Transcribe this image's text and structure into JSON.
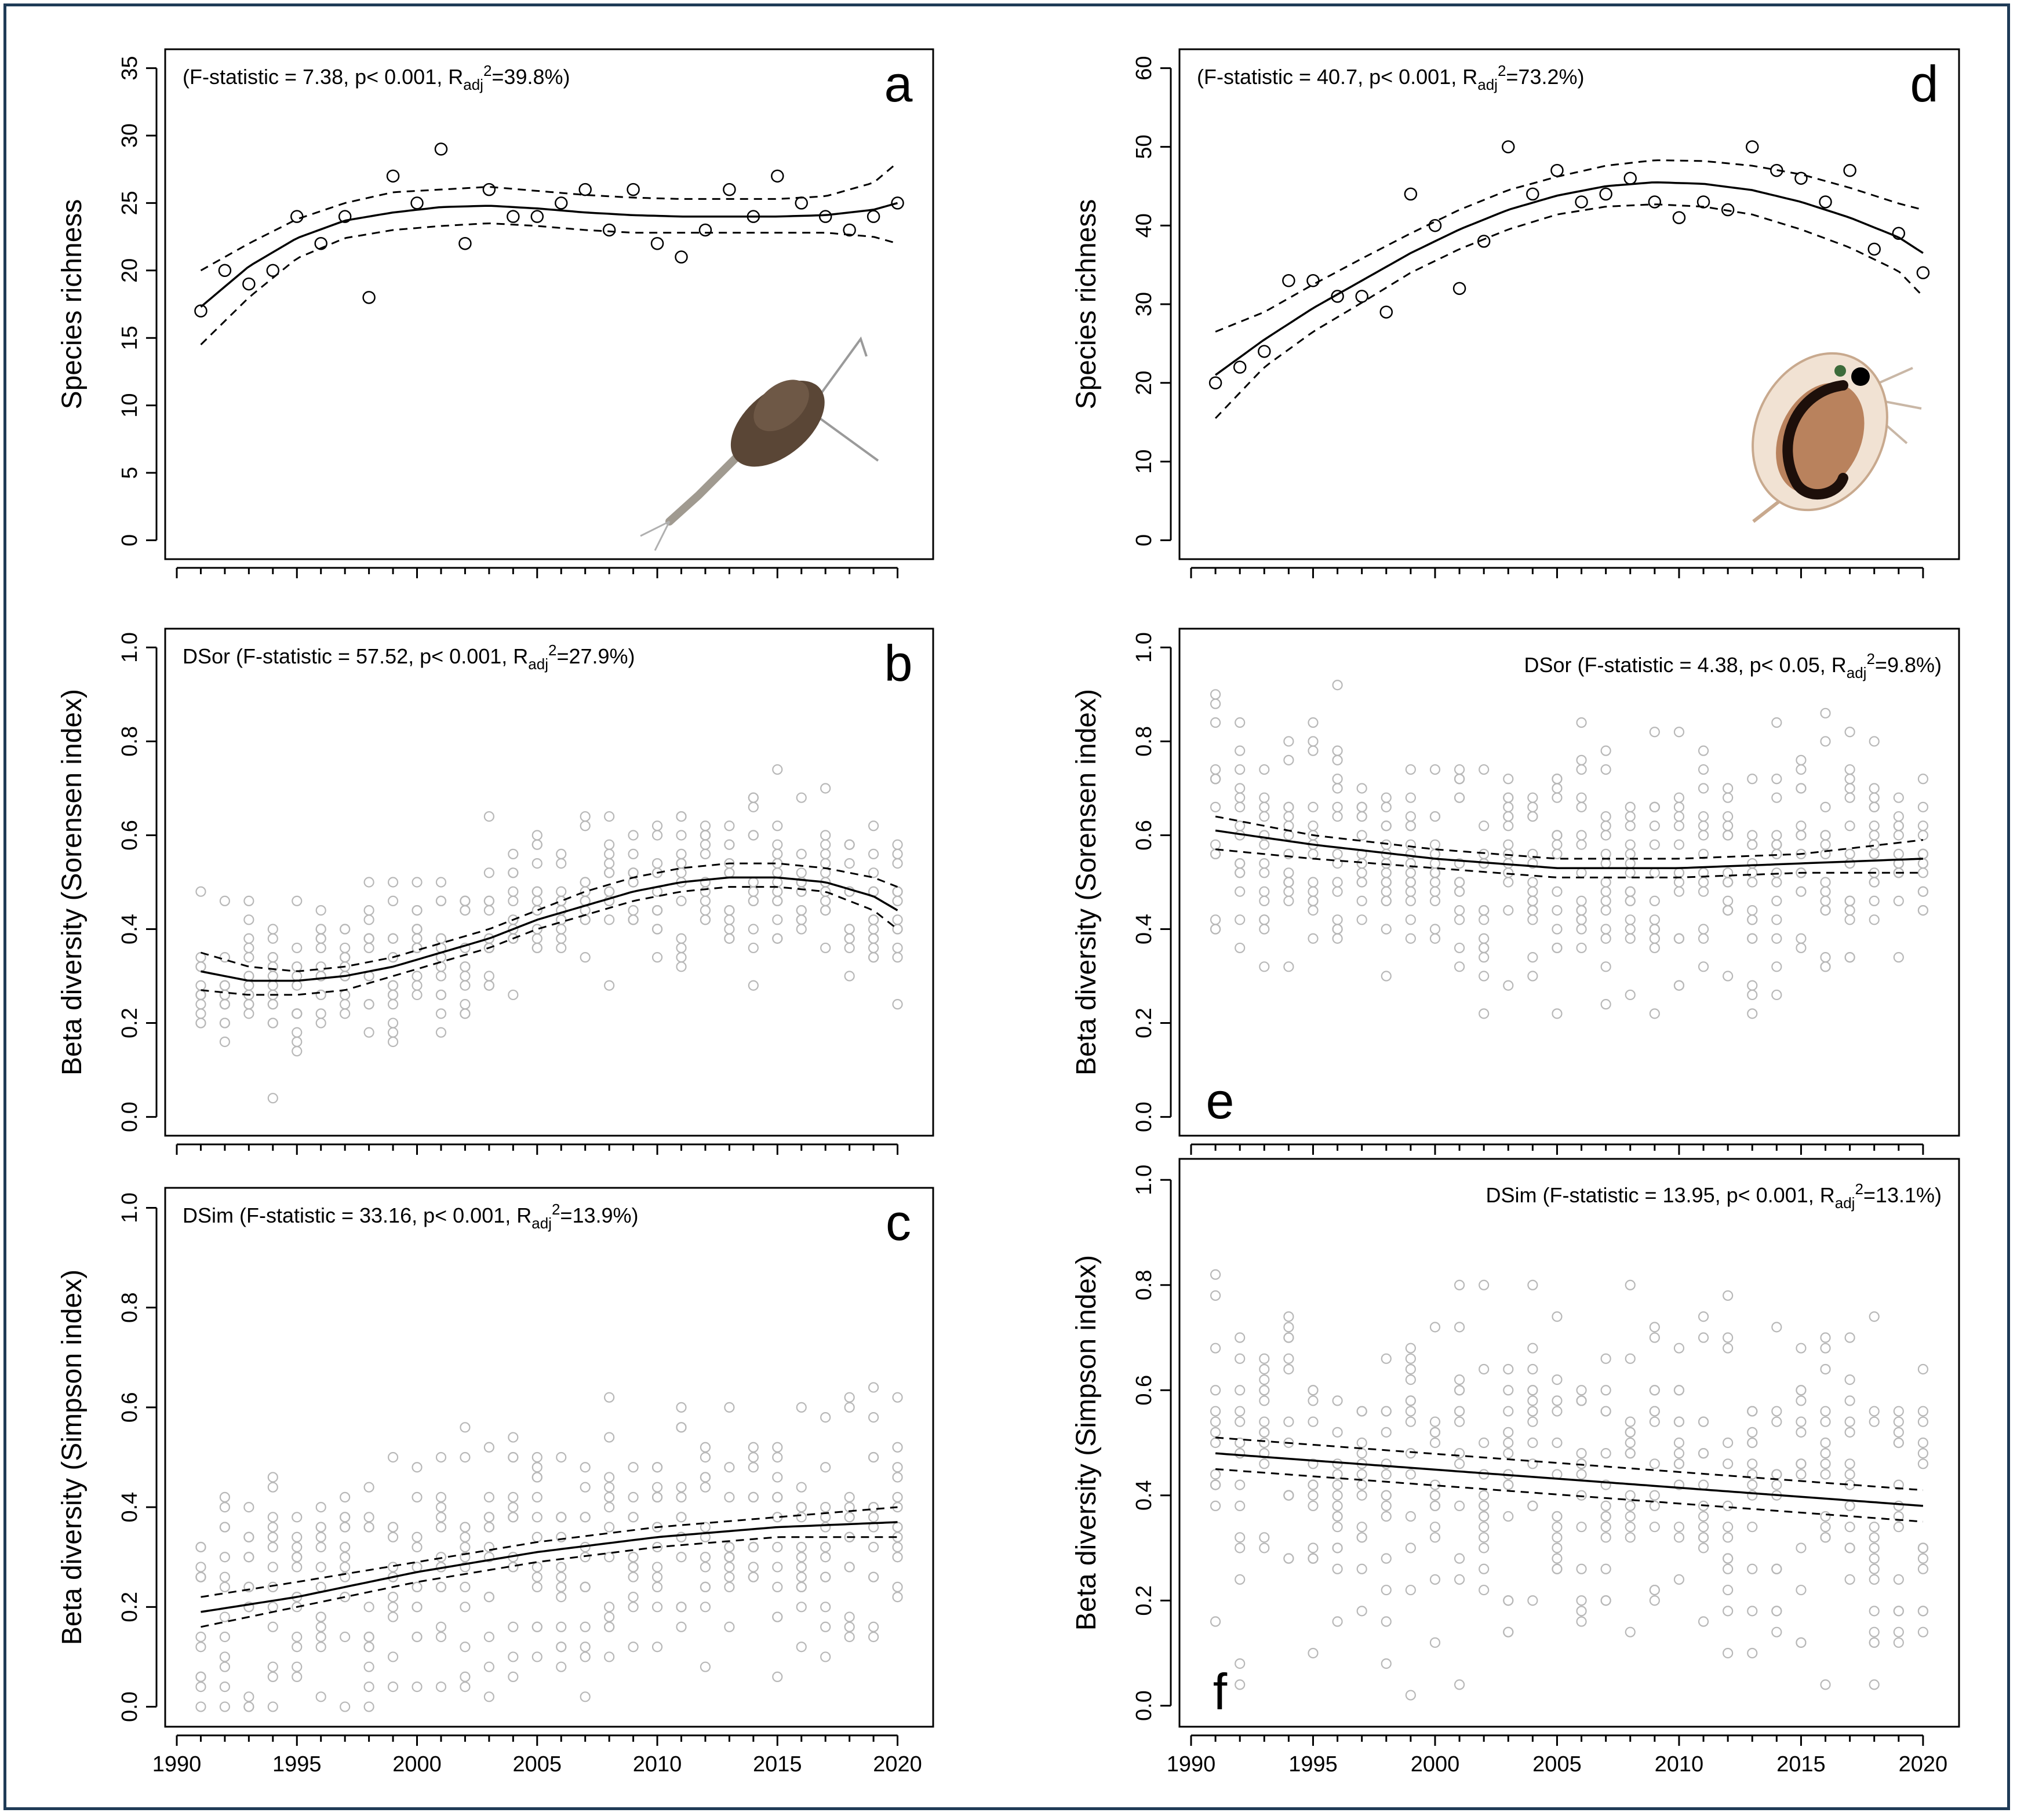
{
  "figure": {
    "frame_color": "#1f3b57",
    "x_ticks": [
      1990,
      1995,
      2000,
      2005,
      2010,
      2015,
      2020
    ]
  },
  "chart_data": [
    {
      "id": "a",
      "type": "scatter",
      "panel_letter": "a",
      "ylabel": "Species richness",
      "stat_parts": {
        "pre": "(F-statistic = 7.38, p< 0.001, R",
        "sub": "adj",
        "sup": "2",
        "post": "=39.8%)"
      },
      "x_range": [
        1990,
        2021
      ],
      "ylim": [
        0,
        35
      ],
      "y_ticks": [
        0,
        5,
        10,
        15,
        20,
        25,
        30,
        35
      ],
      "x_axis_labels": false,
      "point_color": "#000000",
      "points": {
        "x": [
          1991,
          1992,
          1993,
          1994,
          1995,
          1996,
          1997,
          1998,
          1999,
          2000,
          2001,
          2002,
          2003,
          2004,
          2005,
          2006,
          2007,
          2008,
          2009,
          2010,
          2011,
          2012,
          2013,
          2014,
          2015,
          2016,
          2017,
          2018,
          2019,
          2020
        ],
        "y": [
          17,
          20,
          19,
          20,
          24,
          22,
          24,
          18,
          27,
          25,
          29,
          22,
          26,
          24,
          24,
          25,
          26,
          23,
          26,
          22,
          21,
          23,
          26,
          24,
          27,
          25,
          24,
          23,
          24,
          25
        ]
      },
      "fit": {
        "x": [
          1991,
          1993,
          1995,
          1997,
          1999,
          2001,
          2003,
          2005,
          2007,
          2009,
          2011,
          2013,
          2015,
          2017,
          2019,
          2020
        ],
        "y": [
          17.3,
          20.3,
          22.4,
          23.7,
          24.3,
          24.7,
          24.8,
          24.6,
          24.3,
          24.1,
          24.0,
          24.0,
          24.0,
          24.1,
          24.5,
          25.0
        ],
        "upper": [
          20.0,
          22.0,
          23.8,
          25.0,
          25.8,
          26.0,
          26.2,
          25.9,
          25.6,
          25.4,
          25.3,
          25.3,
          25.3,
          25.5,
          26.5,
          28.0
        ],
        "lower": [
          14.5,
          18.0,
          20.9,
          22.4,
          23.0,
          23.3,
          23.5,
          23.3,
          23.0,
          22.8,
          22.8,
          22.8,
          22.8,
          22.8,
          22.5,
          22.0
        ]
      },
      "image_caption": "copepod photograph"
    },
    {
      "id": "b",
      "type": "scatter",
      "panel_letter": "b",
      "ylabel": "Beta diversity (Sorensen index)",
      "stat_parts": {
        "pre": "DSor (F-statistic = 57.52, p< 0.001, R",
        "sub": "adj",
        "sup": "2",
        "post": "=27.9%)"
      },
      "x_range": [
        1990,
        2021
      ],
      "ylim": [
        0,
        1
      ],
      "y_ticks": [
        0.0,
        0.2,
        0.4,
        0.6,
        0.8,
        1.0
      ],
      "x_axis_labels": false,
      "point_color": "#b8b8b8",
      "scatter_seed": 11,
      "scatter_per_year": 13,
      "scatter_spread": 0.11,
      "fit": {
        "x": [
          1991,
          1993,
          1995,
          1997,
          1999,
          2001,
          2003,
          2005,
          2007,
          2009,
          2011,
          2013,
          2015,
          2017,
          2019,
          2020
        ],
        "y": [
          0.31,
          0.29,
          0.29,
          0.3,
          0.32,
          0.35,
          0.38,
          0.42,
          0.45,
          0.48,
          0.5,
          0.51,
          0.51,
          0.5,
          0.47,
          0.44
        ],
        "upper": [
          0.35,
          0.32,
          0.31,
          0.32,
          0.34,
          0.37,
          0.4,
          0.44,
          0.48,
          0.51,
          0.53,
          0.54,
          0.54,
          0.53,
          0.51,
          0.49
        ],
        "lower": [
          0.27,
          0.26,
          0.26,
          0.27,
          0.3,
          0.33,
          0.36,
          0.4,
          0.43,
          0.46,
          0.48,
          0.49,
          0.49,
          0.48,
          0.44,
          0.4
        ]
      }
    },
    {
      "id": "c",
      "type": "scatter",
      "panel_letter": "c",
      "ylabel": "Beta diversity (Simpson index)",
      "stat_parts": {
        "pre": "DSim (F-statistic = 33.16, p< 0.001, R",
        "sub": "adj",
        "sup": "2",
        "post": "=13.9%)"
      },
      "x_range": [
        1990,
        2021
      ],
      "ylim": [
        0,
        1
      ],
      "y_ticks": [
        0.0,
        0.2,
        0.4,
        0.6,
        0.8,
        1.0
      ],
      "x_axis_labels": true,
      "point_color": "#b8b8b8",
      "scatter_seed": 29,
      "scatter_per_year": 13,
      "scatter_spread": 0.15,
      "fit": {
        "x": [
          1991,
          1995,
          2000,
          2005,
          2010,
          2015,
          2020
        ],
        "y": [
          0.19,
          0.22,
          0.27,
          0.31,
          0.34,
          0.36,
          0.37
        ],
        "upper": [
          0.22,
          0.25,
          0.29,
          0.33,
          0.36,
          0.38,
          0.4
        ],
        "lower": [
          0.16,
          0.2,
          0.25,
          0.29,
          0.32,
          0.34,
          0.34
        ]
      }
    },
    {
      "id": "d",
      "type": "scatter",
      "panel_letter": "d",
      "ylabel": "Species richness",
      "stat_parts": {
        "pre": "(F-statistic = 40.7, p< 0.001, R",
        "sub": "adj",
        "sup": "2",
        "post": "=73.2%)"
      },
      "x_range": [
        1990,
        2021
      ],
      "ylim": [
        0,
        60
      ],
      "y_ticks": [
        0,
        10,
        20,
        30,
        40,
        50,
        60
      ],
      "x_axis_labels": false,
      "point_color": "#000000",
      "points": {
        "x": [
          1991,
          1992,
          1993,
          1994,
          1995,
          1996,
          1997,
          1998,
          1999,
          2000,
          2001,
          2002,
          2003,
          2004,
          2005,
          2006,
          2007,
          2008,
          2009,
          2010,
          2011,
          2012,
          2013,
          2014,
          2015,
          2016,
          2017,
          2018,
          2019,
          2020
        ],
        "y": [
          20,
          22,
          24,
          33,
          33,
          31,
          31,
          29,
          44,
          40,
          32,
          38,
          50,
          44,
          47,
          43,
          44,
          46,
          43,
          41,
          43,
          42,
          50,
          47,
          46,
          43,
          47,
          37,
          39,
          34
        ]
      },
      "fit": {
        "x": [
          1991,
          1993,
          1995,
          1997,
          1999,
          2001,
          2003,
          2005,
          2007,
          2009,
          2011,
          2013,
          2015,
          2017,
          2019,
          2020
        ],
        "y": [
          21.0,
          25.5,
          29.5,
          33.0,
          36.5,
          39.5,
          42.0,
          43.8,
          45.0,
          45.5,
          45.3,
          44.5,
          43.0,
          41.0,
          38.5,
          36.5
        ],
        "upper": [
          26.5,
          29.0,
          32.5,
          35.8,
          39.0,
          42.0,
          44.5,
          46.2,
          47.6,
          48.3,
          48.2,
          47.6,
          46.5,
          44.8,
          42.8,
          42.0
        ],
        "lower": [
          15.5,
          22.0,
          26.5,
          30.2,
          34.0,
          37.0,
          39.5,
          41.4,
          42.4,
          42.7,
          42.4,
          41.4,
          39.5,
          37.2,
          34.2,
          31.0
        ]
      },
      "image_caption": "daphnia photograph"
    },
    {
      "id": "e",
      "type": "scatter",
      "panel_letter": "e",
      "ylabel": "Beta diversity (Sorensen index)",
      "stat_parts": {
        "pre": "DSor (F-statistic = 4.38, p< 0.05, R",
        "sub": "adj",
        "sup": "2",
        "post": "=9.8%)"
      },
      "x_range": [
        1990,
        2021
      ],
      "ylim": [
        0,
        1
      ],
      "y_ticks": [
        0.0,
        0.2,
        0.4,
        0.6,
        0.8,
        1.0
      ],
      "x_axis_labels": false,
      "point_color": "#b8b8b8",
      "scatter_seed": 47,
      "scatter_per_year": 15,
      "scatter_spread": 0.17,
      "fit": {
        "x": [
          1991,
          1995,
          2000,
          2005,
          2010,
          2015,
          2020
        ],
        "y": [
          0.61,
          0.58,
          0.55,
          0.53,
          0.53,
          0.54,
          0.55
        ],
        "upper": [
          0.64,
          0.6,
          0.57,
          0.55,
          0.55,
          0.56,
          0.59
        ],
        "lower": [
          0.57,
          0.55,
          0.53,
          0.51,
          0.51,
          0.52,
          0.52
        ]
      }
    },
    {
      "id": "f",
      "type": "scatter",
      "panel_letter": "f",
      "ylabel": "Beta diversity (Simpson index)",
      "stat_parts": {
        "pre": "DSim (F-statistic = 13.95, p< 0.001, R",
        "sub": "adj",
        "sup": "2",
        "post": "=13.1%)"
      },
      "x_range": [
        1990,
        2021
      ],
      "ylim": [
        0,
        1
      ],
      "y_ticks": [
        0.0,
        0.2,
        0.4,
        0.6,
        0.8,
        1.0
      ],
      "x_axis_labels": true,
      "point_color": "#b8b8b8",
      "scatter_seed": 83,
      "scatter_per_year": 14,
      "scatter_spread": 0.2,
      "fit": {
        "x": [
          1991,
          2020
        ],
        "y": [
          0.48,
          0.38
        ],
        "upper": [
          0.51,
          0.41
        ],
        "lower": [
          0.45,
          0.35
        ]
      }
    }
  ]
}
